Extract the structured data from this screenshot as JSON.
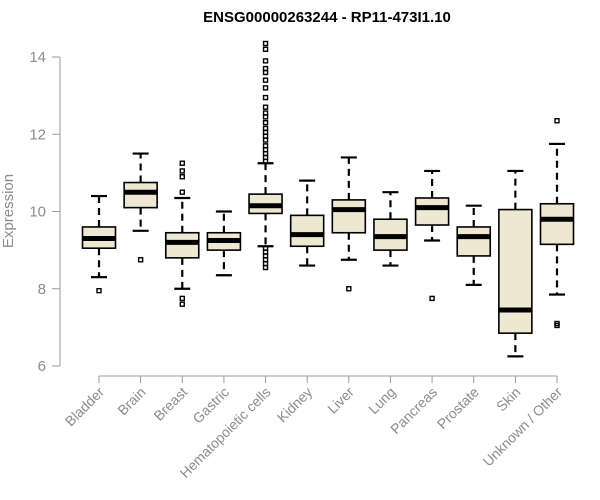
{
  "chart_data": {
    "type": "boxplot",
    "title": "ENSG00000263244 - RP11-473I1.10",
    "xlabel": "",
    "ylabel": "Expression",
    "ylim": [
      6,
      14
    ],
    "yticks": [
      6,
      8,
      10,
      12,
      14
    ],
    "colors": {
      "box_fill": "#eee8d2",
      "box_stroke": "#000000",
      "axis": "#9a9a9a",
      "label": "#8c8c8c"
    },
    "categories": [
      "Bladder",
      "Brain",
      "Breast",
      "Gastric",
      "Hematopoietic cells",
      "Kidney",
      "Liver",
      "Lung",
      "Pancreas",
      "Prostate",
      "Skin",
      "Unknown / Other"
    ],
    "boxes": [
      {
        "name": "Bladder",
        "whisker_low": 8.3,
        "q1": 9.05,
        "median": 9.3,
        "q3": 9.6,
        "whisker_high": 10.4,
        "outliers": [
          7.95
        ]
      },
      {
        "name": "Brain",
        "whisker_low": 9.5,
        "q1": 10.1,
        "median": 10.5,
        "q3": 10.75,
        "whisker_high": 11.5,
        "outliers": [
          8.75
        ]
      },
      {
        "name": "Breast",
        "whisker_low": 8.0,
        "q1": 8.8,
        "median": 9.2,
        "q3": 9.45,
        "whisker_high": 10.35,
        "outliers": [
          7.6,
          7.75,
          10.5,
          10.9,
          11.05,
          11.25
        ]
      },
      {
        "name": "Gastric",
        "whisker_low": 8.35,
        "q1": 9.0,
        "median": 9.25,
        "q3": 9.45,
        "whisker_high": 10.0,
        "outliers": []
      },
      {
        "name": "Hematopoietic cells",
        "whisker_low": 9.1,
        "q1": 9.95,
        "median": 10.15,
        "q3": 10.45,
        "whisker_high": 11.25,
        "outliers": [
          8.55,
          8.65,
          8.75,
          8.85,
          8.95,
          9.05,
          11.3,
          11.4,
          11.5,
          11.6,
          11.7,
          11.85,
          11.95,
          12.05,
          12.15,
          12.3,
          12.45,
          12.55,
          12.7,
          12.95,
          13.2,
          13.4,
          13.6,
          13.7,
          13.9,
          14.2,
          14.35
        ]
      },
      {
        "name": "Kidney",
        "whisker_low": 8.6,
        "q1": 9.1,
        "median": 9.4,
        "q3": 9.9,
        "whisker_high": 10.8,
        "outliers": []
      },
      {
        "name": "Liver",
        "whisker_low": 8.75,
        "q1": 9.45,
        "median": 10.05,
        "q3": 10.3,
        "whisker_high": 11.4,
        "outliers": [
          8.0
        ]
      },
      {
        "name": "Lung",
        "whisker_low": 8.6,
        "q1": 9.0,
        "median": 9.35,
        "q3": 9.8,
        "whisker_high": 10.5,
        "outliers": []
      },
      {
        "name": "Pancreas",
        "whisker_low": 9.25,
        "q1": 9.65,
        "median": 10.1,
        "q3": 10.35,
        "whisker_high": 11.05,
        "outliers": [
          7.75
        ]
      },
      {
        "name": "Prostate",
        "whisker_low": 8.1,
        "q1": 8.85,
        "median": 9.35,
        "q3": 9.6,
        "whisker_high": 10.15,
        "outliers": []
      },
      {
        "name": "Skin",
        "whisker_low": 6.25,
        "q1": 6.85,
        "median": 7.45,
        "q3": 10.05,
        "whisker_high": 11.05,
        "outliers": []
      },
      {
        "name": "Unknown / Other",
        "whisker_low": 7.85,
        "q1": 9.15,
        "median": 9.8,
        "q3": 10.2,
        "whisker_high": 11.75,
        "outliers": [
          7.05,
          7.1,
          12.35
        ]
      }
    ]
  }
}
